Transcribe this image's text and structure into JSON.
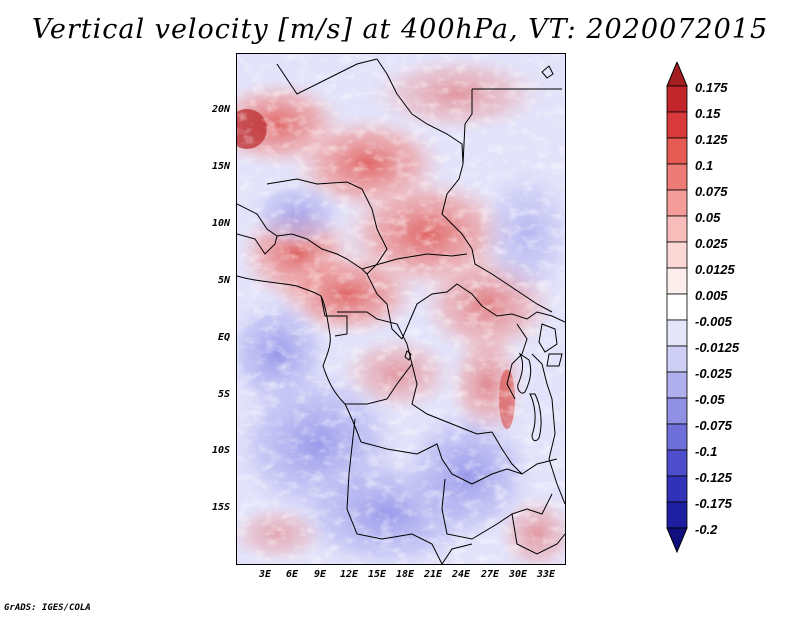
{
  "title": "Vertical velocity [m/s] at 400hPa, VT: 2020072015",
  "map": {
    "lat_labels": [
      "20N",
      "15N",
      "10N",
      "5N",
      "EQ",
      "5S",
      "10S",
      "15S"
    ],
    "lat_values": [
      20,
      15,
      10,
      5,
      0,
      -5,
      -10,
      -15
    ],
    "lon_labels": [
      "3E",
      "6E",
      "9E",
      "12E",
      "15E",
      "18E",
      "21E",
      "24E",
      "27E",
      "30E",
      "33E"
    ],
    "lon_values": [
      3,
      6,
      9,
      12,
      15,
      18,
      21,
      24,
      27,
      30,
      33
    ],
    "lon_range": [
      0,
      35
    ],
    "lat_range": [
      -20,
      25
    ]
  },
  "colorbar": {
    "labels": [
      "0.175",
      "0.15",
      "0.125",
      "0.1",
      "0.075",
      "0.05",
      "0.025",
      "0.0125",
      "0.005",
      "-0.005",
      "-0.0125",
      "-0.025",
      "-0.05",
      "-0.075",
      "-0.1",
      "-0.125",
      "-0.175",
      "-0.2"
    ],
    "colors": [
      "#a51e22",
      "#c2262a",
      "#d8393a",
      "#e55a52",
      "#ed7c76",
      "#f39c99",
      "#f8bcba",
      "#fbd7d6",
      "#fdeeee",
      "#ffffff",
      "#e6e6fb",
      "#cfcff6",
      "#b0b0ef",
      "#9090e5",
      "#6f6fda",
      "#4e4ecd",
      "#3232b8",
      "#1e1ea0",
      "#0f0f80"
    ]
  },
  "footer": "GrADS: IGES/COLA"
}
